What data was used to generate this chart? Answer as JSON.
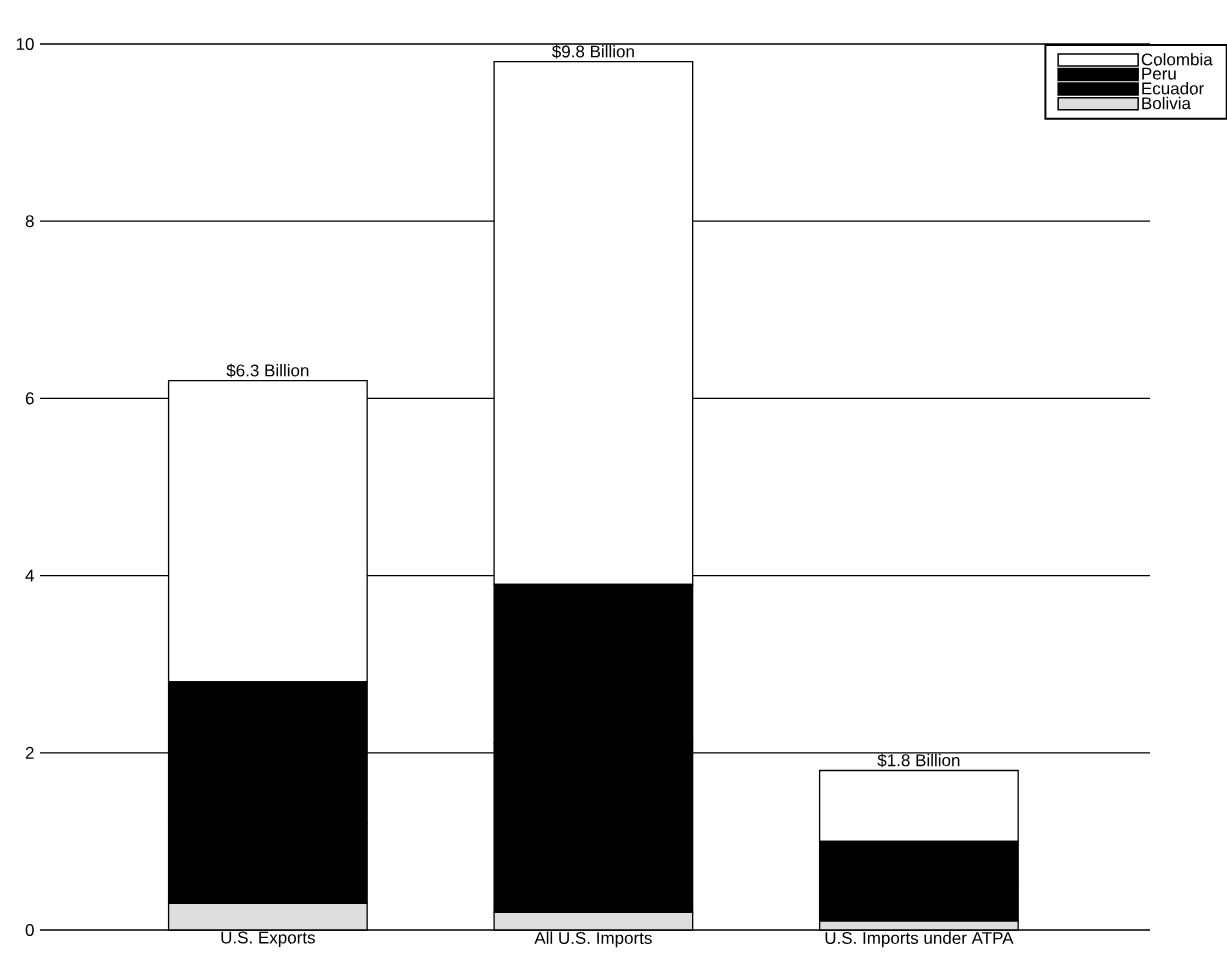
{
  "chart_data": {
    "type": "bar",
    "stacked": true,
    "categories": [
      "U.S. Exports",
      "All U.S. Imports",
      "U.S. Imports under ATPA"
    ],
    "series": [
      {
        "name": "Bolivia",
        "color": "#dddddd",
        "values": [
          0.3,
          0.2,
          0.1
        ]
      },
      {
        "name": "Ecuador",
        "color": "#000000",
        "values": [
          0.9,
          1.9,
          0.4
        ]
      },
      {
        "name": "Peru",
        "color": "#000000",
        "values": [
          1.6,
          1.8,
          0.5
        ]
      },
      {
        "name": "Colombia",
        "color": "#ffffff",
        "values": [
          3.4,
          5.9,
          0.8
        ]
      }
    ],
    "totals": [
      "$6.3 Billion",
      "$9.8 Billion",
      "$1.8 Billion"
    ],
    "ylim": [
      0,
      10
    ],
    "yticks": [
      0,
      2,
      4,
      6,
      8,
      10
    ],
    "grid": "y",
    "legend": "top right"
  }
}
